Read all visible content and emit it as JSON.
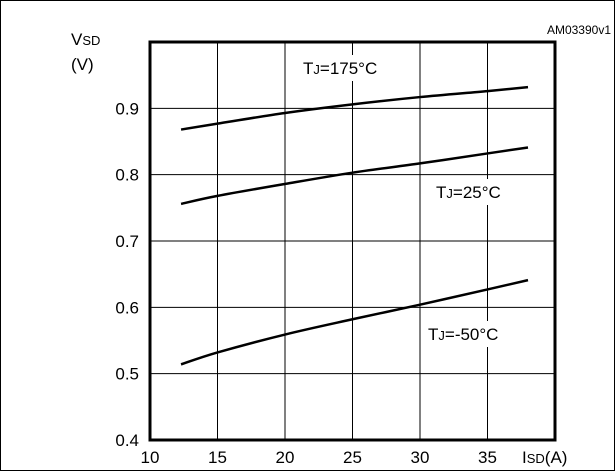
{
  "chart_data": {
    "type": "line",
    "figure_id": "AM03390v1",
    "ylabel_main": "V",
    "ylabel_sub": "SD",
    "ylabel_unit": "(V)",
    "xlabel_main": "I",
    "xlabel_sub": "SD",
    "xlabel_unit": "(A)",
    "xlim": [
      10,
      40
    ],
    "ylim": [
      0.4,
      1.0
    ],
    "xticks": [
      "10",
      "15",
      "20",
      "25",
      "30",
      "35"
    ],
    "yticks": [
      "0.4",
      "0.5",
      "0.6",
      "0.7",
      "0.8",
      "0.9"
    ],
    "grid": true,
    "series": [
      {
        "name": "TJ=175°C",
        "label_main": "T",
        "label_sub": "J",
        "label_rest": "=175°C",
        "x": [
          12.3,
          15,
          20,
          25,
          30,
          35,
          38
        ],
        "y": [
          0.868,
          0.877,
          0.893,
          0.906,
          0.917,
          0.926,
          0.932
        ]
      },
      {
        "name": "TJ=25°C",
        "label_main": "T",
        "label_sub": "J",
        "label_rest": "=25°C",
        "x": [
          12.3,
          15,
          20,
          25,
          30,
          35,
          38
        ],
        "y": [
          0.756,
          0.768,
          0.786,
          0.803,
          0.817,
          0.832,
          0.841
        ]
      },
      {
        "name": "TJ=-50°C",
        "label_main": "T",
        "label_sub": "J",
        "label_rest": "=-50°C",
        "x": [
          12.3,
          15,
          20,
          25,
          30,
          35,
          38
        ],
        "y": [
          0.514,
          0.532,
          0.559,
          0.582,
          0.604,
          0.627,
          0.641
        ]
      }
    ]
  }
}
